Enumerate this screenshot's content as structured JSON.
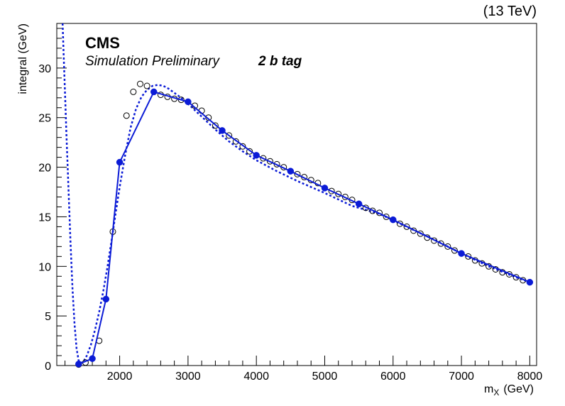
{
  "chart_data": {
    "type": "scatter",
    "energy_label": "(13 TeV)",
    "experiment": "CMS",
    "subtitle": "Simulation Preliminary",
    "category": "2 b tag",
    "xlabel_main": "m",
    "xlabel_sub": "X",
    "xlabel_unit": "(GeV)",
    "ylabel": "integral (GeV)",
    "xlim": [
      1080,
      8100
    ],
    "ylim": [
      0,
      34.5
    ],
    "xticks": [
      2000,
      3000,
      4000,
      5000,
      6000,
      7000,
      8000
    ],
    "yticks": [
      0,
      5,
      10,
      15,
      20,
      25,
      30
    ],
    "x_minor_step": 200,
    "y_minor_step": 1,
    "colors": {
      "fit": "#0b1bd6",
      "open_points": "#000000"
    },
    "series": [
      {
        "style": "open-circles",
        "x": [
          1400,
          1500,
          1700,
          1900,
          2100,
          2200,
          2300,
          2400,
          2600,
          2700,
          2800,
          2900,
          3100,
          3200,
          3300,
          3400,
          3600,
          3700,
          3800,
          3900,
          4100,
          4200,
          4300,
          4400,
          4600,
          4700,
          4800,
          4900,
          5100,
          5200,
          5300,
          5400,
          5600,
          5700,
          5800,
          5900,
          6100,
          6200,
          6300,
          6400,
          6500,
          6600,
          6700,
          6800,
          6900,
          7100,
          7200,
          7300,
          7400,
          7500,
          7600,
          7700,
          7800,
          7900
        ],
        "y": [
          0.1,
          0.3,
          2.5,
          13.5,
          25.2,
          27.6,
          28.4,
          28.2,
          27.3,
          27.1,
          26.9,
          26.8,
          26.2,
          25.7,
          25.0,
          24.2,
          23.2,
          22.6,
          22.1,
          21.6,
          20.9,
          20.6,
          20.3,
          20.0,
          19.3,
          19.0,
          18.7,
          18.4,
          17.6,
          17.3,
          17.0,
          16.7,
          15.9,
          15.6,
          15.4,
          15.0,
          14.3,
          14.0,
          13.6,
          13.3,
          12.9,
          12.6,
          12.3,
          12.0,
          11.6,
          11.0,
          10.6,
          10.3,
          10.0,
          9.7,
          9.4,
          9.2,
          8.9,
          8.6
        ]
      },
      {
        "style": "filled-circles-line",
        "x": [
          1400,
          1600,
          1800,
          2000,
          2500,
          3000,
          3500,
          4000,
          4500,
          5000,
          5500,
          6000,
          7000,
          8000
        ],
        "y": [
          0.15,
          0.7,
          6.7,
          20.5,
          27.6,
          26.6,
          23.7,
          21.2,
          19.6,
          17.9,
          16.3,
          14.7,
          11.3,
          8.4
        ]
      },
      {
        "style": "dotted-fit",
        "x": [
          1165,
          1180,
          1200,
          1220,
          1250,
          1280,
          1310,
          1340,
          1370,
          1400,
          1430,
          1470,
          1520,
          1580,
          1640,
          1700,
          1760,
          1820,
          1880,
          1940,
          2000,
          2080,
          2160,
          2240,
          2320,
          2400,
          2480,
          2560,
          2640,
          2720,
          2800,
          2900,
          3000,
          3200,
          3400,
          3600,
          3800,
          4000,
          4300,
          4600,
          5000,
          5400,
          5800,
          6200,
          6600,
          7000,
          7400,
          7800,
          8000
        ],
        "y": [
          34.5,
          31.5,
          27.5,
          23.5,
          18.0,
          12.5,
          7.8,
          4.2,
          1.7,
          0.5,
          0.25,
          0.4,
          1.0,
          2.1,
          3.6,
          5.4,
          7.5,
          9.9,
          12.5,
          15.3,
          18.0,
          21.2,
          24.0,
          25.9,
          27.1,
          27.8,
          28.2,
          28.3,
          28.2,
          27.9,
          27.5,
          27.0,
          26.4,
          25.1,
          23.8,
          22.6,
          21.6,
          20.7,
          19.6,
          18.6,
          17.4,
          16.1,
          15.3,
          14.0,
          12.7,
          11.3,
          10.0,
          8.9,
          8.4
        ]
      }
    ]
  }
}
